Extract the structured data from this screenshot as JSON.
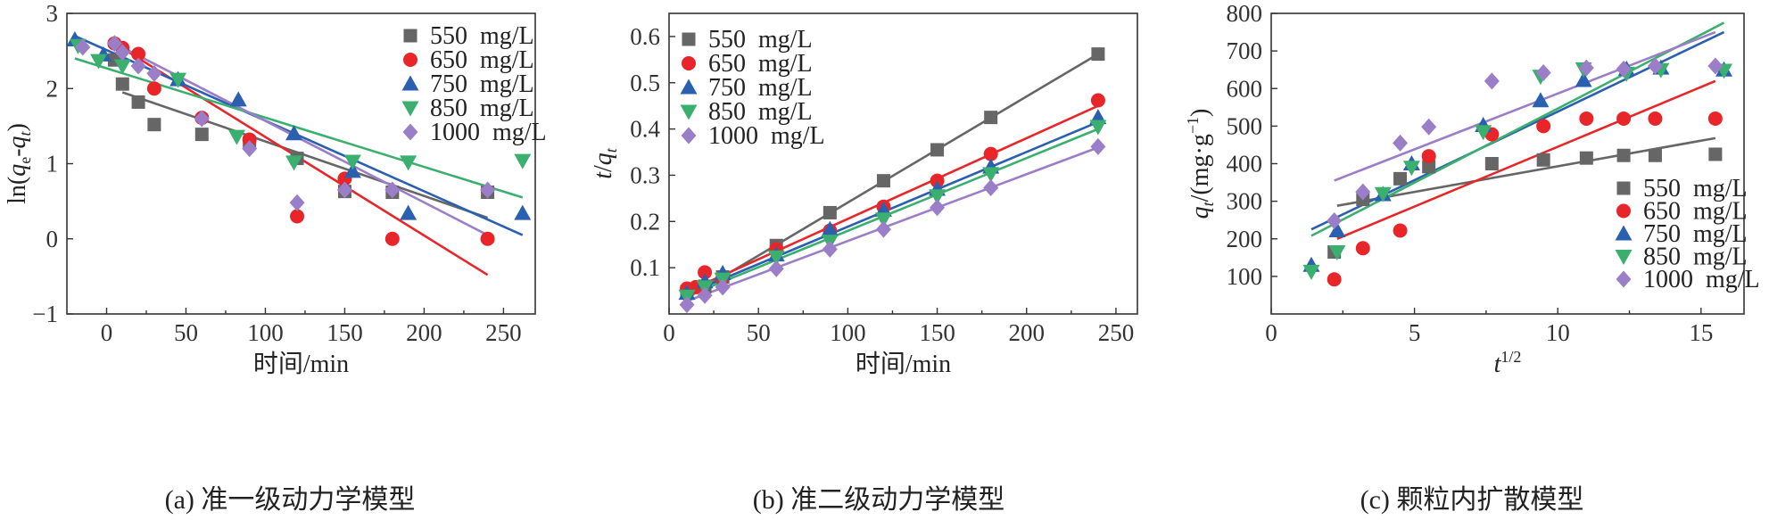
{
  "colors": {
    "550": "#666666",
    "650": "#e8262a",
    "750": "#2b5fb0",
    "850": "#3aaf6e",
    "1000": "#9b7ec8"
  },
  "chart_data": [
    {
      "type": "scatter",
      "panel": "a",
      "caption": "(a) 准一级动力学模型",
      "xlabel": "时间/min",
      "ylabel": "ln(qe-qt)",
      "xlim": [
        -25,
        270
      ],
      "ylim": [
        -1,
        3
      ],
      "xticks": [
        0,
        50,
        100,
        150,
        200,
        250
      ],
      "yticks": [
        -1,
        0,
        1,
        2,
        3
      ],
      "legend_position": "top-right",
      "series": [
        {
          "name": "550  mg/L",
          "marker": "square",
          "color": "#666666",
          "points": [
            [
              5,
              2.38
            ],
            [
              10,
              2.06
            ],
            [
              20,
              1.82
            ],
            [
              30,
              1.52
            ],
            [
              60,
              1.39
            ],
            [
              90,
              1.28
            ],
            [
              120,
              1.07
            ],
            [
              150,
              0.63
            ],
            [
              180,
              0.62
            ],
            [
              240,
              0.62
            ]
          ],
          "fit": [
            [
              10,
              1.95
            ],
            [
              240,
              0.28
            ]
          ]
        },
        {
          "name": "650  mg/L",
          "marker": "circle",
          "color": "#e8262a",
          "points": [
            [
              5,
              2.6
            ],
            [
              10,
              2.54
            ],
            [
              20,
              2.46
            ],
            [
              30,
              2.0
            ],
            [
              60,
              1.61
            ],
            [
              90,
              1.32
            ],
            [
              120,
              0.3
            ],
            [
              150,
              0.8
            ],
            [
              180,
              0.0
            ],
            [
              240,
              0.0
            ]
          ],
          "fit": [
            [
              5,
              2.6
            ],
            [
              240,
              -0.48
            ]
          ]
        },
        {
          "name": "750  mg/L",
          "marker": "triangle-up",
          "color": "#2b5fb0",
          "points": [
            [
              -20,
              2.65
            ],
            [
              -2,
              2.45
            ],
            [
              45,
              2.12
            ],
            [
              83,
              1.85
            ],
            [
              118,
              1.4
            ],
            [
              155,
              0.9
            ],
            [
              190,
              0.34
            ],
            [
              262,
              0.34
            ]
          ],
          "fit": [
            [
              -20,
              2.7
            ],
            [
              262,
              0.05
            ]
          ]
        },
        {
          "name": "850  mg/L",
          "marker": "triangle-down",
          "color": "#3aaf6e",
          "points": [
            [
              -18,
              2.57
            ],
            [
              -5,
              2.37
            ],
            [
              10,
              2.3
            ],
            [
              45,
              2.12
            ],
            [
              82,
              1.36
            ],
            [
              118,
              1.02
            ],
            [
              155,
              1.03
            ],
            [
              190,
              1.02
            ],
            [
              262,
              1.04
            ]
          ],
          "fit": [
            [
              -20,
              2.4
            ],
            [
              262,
              0.55
            ]
          ]
        },
        {
          "name": "1000  mg/L",
          "marker": "diamond",
          "color": "#9b7ec8",
          "points": [
            [
              -15,
              2.55
            ],
            [
              5,
              2.6
            ],
            [
              10,
              2.48
            ],
            [
              20,
              2.3
            ],
            [
              30,
              2.2
            ],
            [
              60,
              1.6
            ],
            [
              90,
              1.2
            ],
            [
              120,
              0.48
            ],
            [
              150,
              0.65
            ],
            [
              180,
              0.65
            ],
            [
              240,
              0.65
            ]
          ],
          "fit": [
            [
              5,
              2.6
            ],
            [
              240,
              0.05
            ]
          ]
        }
      ]
    },
    {
      "type": "scatter",
      "panel": "b",
      "caption": "(b) 准二级动力学模型",
      "xlabel": "时间/min",
      "ylabel": "t/qt",
      "xlim": [
        0,
        262
      ],
      "ylim": [
        0,
        0.65
      ],
      "xticks": [
        0,
        50,
        100,
        150,
        200,
        250
      ],
      "yticks": [
        0.1,
        0.2,
        0.3,
        0.4,
        0.5,
        0.6
      ],
      "legend_position": "top-left",
      "series": [
        {
          "name": "550  mg/L",
          "marker": "square",
          "color": "#666666",
          "points": [
            [
              10,
              0.048
            ],
            [
              20,
              0.06
            ],
            [
              30,
              0.08
            ],
            [
              60,
              0.148
            ],
            [
              90,
              0.219
            ],
            [
              120,
              0.288
            ],
            [
              150,
              0.355
            ],
            [
              180,
              0.425
            ],
            [
              240,
              0.562
            ]
          ],
          "fit": [
            [
              8,
              0.03
            ],
            [
              240,
              0.562
            ]
          ]
        },
        {
          "name": "650  mg/L",
          "marker": "circle",
          "color": "#e8262a",
          "points": [
            [
              10,
              0.055
            ],
            [
              15,
              0.058
            ],
            [
              20,
              0.09
            ],
            [
              30,
              0.078
            ],
            [
              60,
              0.14
            ],
            [
              90,
              0.18
            ],
            [
              120,
              0.232
            ],
            [
              150,
              0.288
            ],
            [
              180,
              0.346
            ],
            [
              240,
              0.462
            ]
          ],
          "fit": [
            [
              8,
              0.045
            ],
            [
              240,
              0.45
            ]
          ]
        },
        {
          "name": "750  mg/L",
          "marker": "triangle-up",
          "color": "#2b5fb0",
          "points": [
            [
              10,
              0.045
            ],
            [
              20,
              0.07
            ],
            [
              30,
              0.088
            ],
            [
              60,
              0.128
            ],
            [
              90,
              0.183
            ],
            [
              120,
              0.225
            ],
            [
              150,
              0.27
            ],
            [
              180,
              0.318
            ],
            [
              240,
              0.425
            ]
          ],
          "fit": [
            [
              8,
              0.04
            ],
            [
              240,
              0.415
            ]
          ]
        },
        {
          "name": "850  mg/L",
          "marker": "triangle-down",
          "color": "#3aaf6e",
          "points": [
            [
              10,
              0.038
            ],
            [
              20,
              0.058
            ],
            [
              30,
              0.075
            ],
            [
              60,
              0.123
            ],
            [
              90,
              0.157
            ],
            [
              120,
              0.205
            ],
            [
              150,
              0.255
            ],
            [
              180,
              0.303
            ],
            [
              240,
              0.405
            ]
          ],
          "fit": [
            [
              8,
              0.035
            ],
            [
              240,
              0.4
            ]
          ]
        },
        {
          "name": "1000  mg/L",
          "marker": "diamond",
          "color": "#9b7ec8",
          "points": [
            [
              10,
              0.02
            ],
            [
              20,
              0.04
            ],
            [
              30,
              0.058
            ],
            [
              60,
              0.098
            ],
            [
              90,
              0.14
            ],
            [
              120,
              0.183
            ],
            [
              150,
              0.23
            ],
            [
              180,
              0.273
            ],
            [
              240,
              0.362
            ]
          ],
          "fit": [
            [
              8,
              0.025
            ],
            [
              240,
              0.36
            ]
          ]
        }
      ]
    },
    {
      "type": "scatter",
      "panel": "c",
      "caption": "(c) 颗粒内扩散模型",
      "xlabel": "t1/2",
      "ylabel": "qt/(mg·g−1)",
      "xlim": [
        0,
        16.5
      ],
      "ylim": [
        0,
        800
      ],
      "xticks": [
        0,
        5,
        10,
        15
      ],
      "yticks": [
        100,
        200,
        300,
        400,
        500,
        600,
        700,
        800
      ],
      "legend_position": "bottom-right",
      "series": [
        {
          "name": "550  mg/L",
          "marker": "square",
          "color": "#666666",
          "points": [
            [
              2.2,
              165
            ],
            [
              3.2,
              305
            ],
            [
              4.5,
              360
            ],
            [
              5.5,
              392
            ],
            [
              7.7,
              400
            ],
            [
              9.5,
              410
            ],
            [
              11,
              415
            ],
            [
              12.3,
              422
            ],
            [
              13.4,
              422
            ],
            [
              15.5,
              425
            ]
          ],
          "fit": [
            [
              2.3,
              288
            ],
            [
              15.5,
              468
            ]
          ]
        },
        {
          "name": "650  mg/L",
          "marker": "circle",
          "color": "#e8262a",
          "points": [
            [
              2.2,
              92
            ],
            [
              3.2,
              175
            ],
            [
              4.5,
              222
            ],
            [
              5.5,
              420
            ],
            [
              7.7,
              478
            ],
            [
              9.5,
              500
            ],
            [
              11,
              520
            ],
            [
              12.3,
              520
            ],
            [
              13.4,
              520
            ],
            [
              15.5,
              520
            ]
          ],
          "fit": [
            [
              2.3,
              200
            ],
            [
              15.5,
              620
            ]
          ]
        },
        {
          "name": "750  mg/L",
          "marker": "triangle-up",
          "color": "#2b5fb0",
          "points": [
            [
              1.4,
              130
            ],
            [
              2.3,
              222
            ],
            [
              3.9,
              318
            ],
            [
              4.9,
              400
            ],
            [
              7.4,
              502
            ],
            [
              9.4,
              568
            ],
            [
              10.9,
              622
            ],
            [
              12.4,
              652
            ],
            [
              13.6,
              655
            ],
            [
              15.8,
              650
            ]
          ],
          "fit": [
            [
              1.4,
              225
            ],
            [
              15.8,
              750
            ]
          ]
        },
        {
          "name": "850  mg/L",
          "marker": "triangle-down",
          "color": "#3aaf6e",
          "points": [
            [
              1.4,
              113
            ],
            [
              2.3,
              165
            ],
            [
              3.9,
              320
            ],
            [
              4.9,
              390
            ],
            [
              7.4,
              485
            ],
            [
              9.4,
              632
            ],
            [
              10.9,
              652
            ],
            [
              12.4,
              640
            ],
            [
              13.6,
              650
            ],
            [
              15.8,
              648
            ]
          ],
          "fit": [
            [
              1.4,
              208
            ],
            [
              15.8,
              775
            ]
          ]
        },
        {
          "name": "1000  mg/L",
          "marker": "diamond",
          "color": "#9b7ec8",
          "points": [
            [
              2.2,
              248
            ],
            [
              3.2,
              325
            ],
            [
              4.5,
              455
            ],
            [
              5.5,
              498
            ],
            [
              7.7,
              620
            ],
            [
              9.5,
              642
            ],
            [
              11,
              655
            ],
            [
              12.3,
              652
            ],
            [
              13.4,
              660
            ],
            [
              15.5,
              660
            ]
          ],
          "fit": [
            [
              2.2,
              355
            ],
            [
              15.5,
              750
            ]
          ]
        }
      ]
    }
  ]
}
